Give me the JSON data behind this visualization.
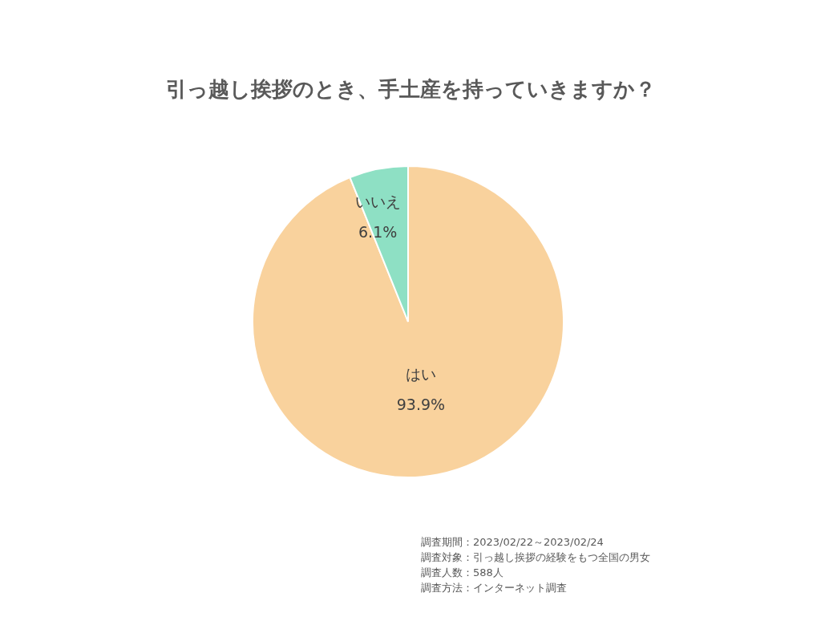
{
  "chart_data": {
    "type": "pie",
    "title": "引っ越し挨拶のとき、手土産を持っていきますか？",
    "categories": [
      "はい",
      "いいえ"
    ],
    "values": [
      93.9,
      6.1
    ],
    "colors": [
      "#f9d29d",
      "#8ee0c4"
    ],
    "value_labels": [
      "93.9%",
      "6.1%"
    ],
    "legend": false,
    "annotations": [
      "調査期間：2023/02/22～2023/02/24",
      "調査対象：引っ越し挨拶の経験をもつ全国の男女",
      "調査人数：588人",
      "調査方法：インターネット調査"
    ]
  }
}
